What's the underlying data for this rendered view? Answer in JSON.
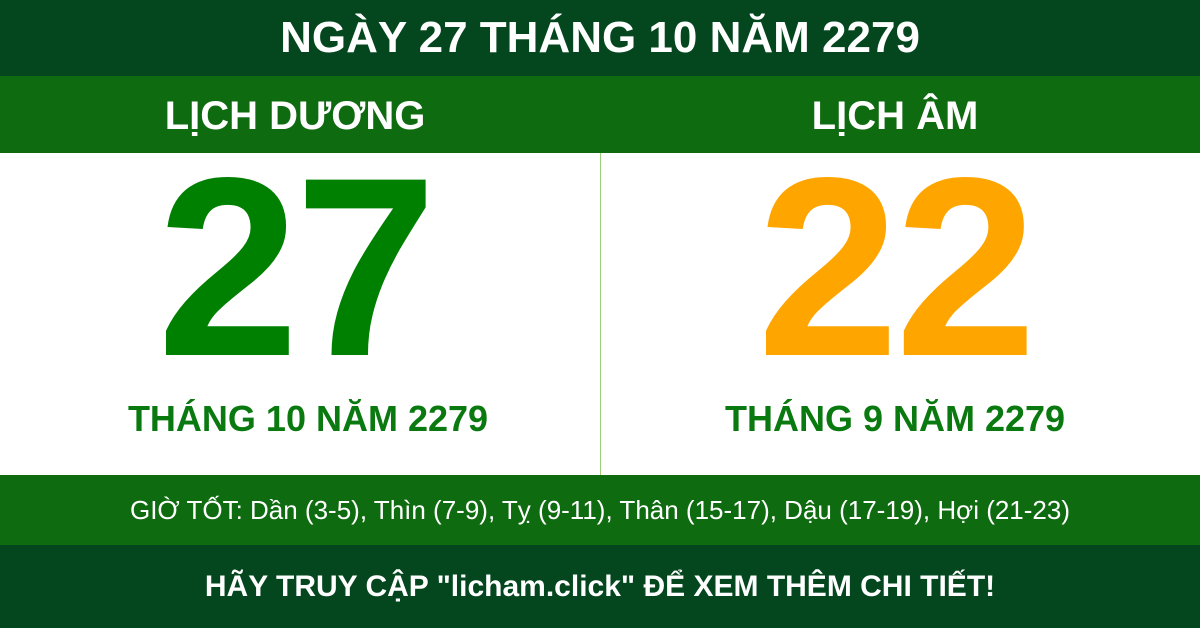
{
  "title": "NGÀY 27 THÁNG 10 NĂM 2279",
  "solar": {
    "label": "LỊCH DƯƠNG",
    "day": "27",
    "month_year": "THÁNG 10 NĂM 2279"
  },
  "lunar": {
    "label": "LỊCH ÂM",
    "day": "22",
    "month_year": "THÁNG 9 NĂM 2279"
  },
  "good_hours": "GIỜ TỐT: Dần (3-5), Thìn (7-9), Tỵ (9-11), Thân (15-17), Dậu (17-19), Hợi (21-23)",
  "footer": "HÃY TRUY CẬP \"licham.click\" ĐỂ XEM THÊM CHI TIẾT!",
  "colors": {
    "dark_green": "#04471f",
    "band_green": "#0f6b10",
    "solar_day": "#008000",
    "lunar_day": "#ffa500"
  }
}
